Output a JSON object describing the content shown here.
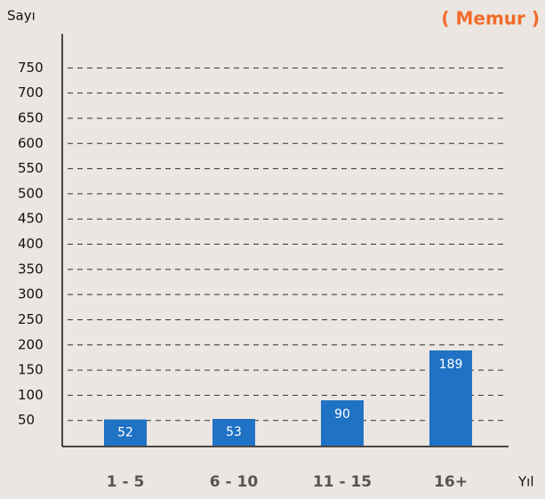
{
  "chart_data": {
    "type": "bar",
    "title": "( Memur )",
    "y_label": "Sayı",
    "x_label": "Yıl",
    "categories": [
      "1 - 5",
      "6 - 10",
      "11 - 15",
      "16+"
    ],
    "values": [
      52,
      53,
      90,
      189
    ],
    "color": "#1f72c4",
    "ylim": [
      0,
      800
    ],
    "yticks": [
      50,
      100,
      150,
      200,
      250,
      300,
      350,
      400,
      450,
      500,
      550,
      600,
      650,
      700,
      750
    ],
    "grid": true
  }
}
